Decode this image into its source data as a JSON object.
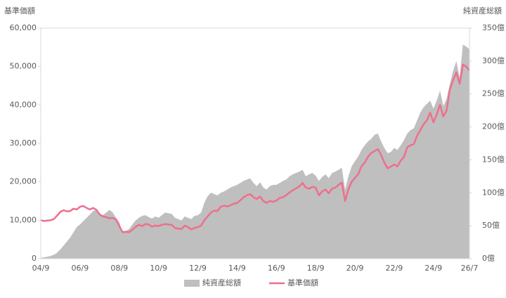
{
  "chart_data": {
    "type": "area-line",
    "y_label": "基準価額",
    "y2_label": "純資産総額",
    "categories": [
      "04/9",
      null,
      null,
      null,
      null,
      null,
      null,
      null,
      null,
      null,
      null,
      null,
      "06/9",
      null,
      null,
      null,
      null,
      null,
      null,
      null,
      null,
      null,
      null,
      null,
      "08/9",
      null,
      null,
      null,
      null,
      null,
      null,
      null,
      null,
      null,
      null,
      null,
      "10/9",
      null,
      null,
      null,
      null,
      null,
      null,
      null,
      null,
      null,
      null,
      null,
      "12/9",
      null,
      null,
      null,
      null,
      null,
      null,
      null,
      null,
      null,
      null,
      null,
      "14/9",
      null,
      null,
      null,
      null,
      null,
      null,
      null,
      null,
      null,
      null,
      null,
      "16/9",
      null,
      null,
      null,
      null,
      null,
      null,
      null,
      null,
      null,
      null,
      null,
      "18/9",
      null,
      null,
      null,
      null,
      null,
      null,
      null,
      null,
      null,
      null,
      null,
      "20/9",
      null,
      null,
      null,
      null,
      null,
      null,
      null,
      null,
      null,
      null,
      null,
      "22/9",
      null,
      null,
      null,
      null,
      null,
      null,
      null,
      null,
      null,
      null,
      null,
      "24/9",
      null,
      null,
      null,
      null,
      null,
      null,
      null,
      null,
      null,
      null,
      "26/7"
    ],
    "series": [
      {
        "name": "純資産総額",
        "kind": "area",
        "axis": "y2",
        "color": "#bfbfbf",
        "values": [
          1,
          2,
          3,
          4,
          6,
          9,
          14,
          20,
          26,
          32,
          40,
          48,
          52,
          57,
          62,
          67,
          72,
          75,
          68,
          66,
          70,
          74,
          70,
          62,
          55,
          40,
          42,
          45,
          52,
          58,
          62,
          65,
          66,
          63,
          61,
          64,
          62,
          66,
          70,
          69,
          68,
          62,
          60,
          58,
          64,
          62,
          60,
          65,
          66,
          70,
          85,
          95,
          100,
          98,
          96,
          100,
          102,
          105,
          108,
          110,
          112,
          115,
          118,
          120,
          122,
          115,
          110,
          116,
          108,
          105,
          110,
          112,
          112,
          115,
          118,
          120,
          125,
          128,
          130,
          132,
          135,
          125,
          128,
          130,
          126,
          118,
          124,
          128,
          122,
          130,
          132,
          135,
          138,
          105,
          125,
          140,
          148,
          155,
          165,
          172,
          178,
          182,
          188,
          190,
          178,
          168,
          160,
          162,
          168,
          165,
          172,
          180,
          190,
          195,
          198,
          210,
          222,
          230,
          235,
          240,
          228,
          240,
          255,
          232,
          242,
          265,
          285,
          300,
          275,
          325,
          322,
          318
        ]
      },
      {
        "name": "基準価額",
        "kind": "line",
        "axis": "y",
        "color": "#ee6f8d",
        "values": [
          10000,
          9800,
          9900,
          10000,
          10300,
          11200,
          12200,
          12600,
          12300,
          12400,
          13000,
          12800,
          13500,
          13700,
          13200,
          12800,
          13200,
          12700,
          11500,
          11000,
          10800,
          10500,
          10600,
          10200,
          8500,
          6900,
          7000,
          6900,
          7500,
          8300,
          8800,
          8500,
          9000,
          8900,
          8300,
          8600,
          8500,
          8800,
          9000,
          8900,
          8800,
          8000,
          7800,
          7700,
          8600,
          8200,
          7600,
          8000,
          8200,
          8600,
          10000,
          11000,
          12000,
          12500,
          12400,
          13500,
          13800,
          13600,
          13900,
          14300,
          14500,
          15200,
          16000,
          16500,
          16800,
          16000,
          15500,
          16200,
          15000,
          14500,
          15000,
          14800,
          15100,
          15800,
          16000,
          16500,
          17200,
          17800,
          18300,
          18800,
          19700,
          18500,
          18200,
          18700,
          18500,
          16500,
          17500,
          18000,
          17000,
          18200,
          18500,
          19200,
          19800,
          15000,
          18000,
          20000,
          21000,
          22000,
          24000,
          25000,
          26500,
          27500,
          28000,
          28500,
          27000,
          25000,
          23500,
          24000,
          24500,
          24000,
          25500,
          26500,
          29000,
          29500,
          29800,
          32000,
          33500,
          35000,
          36000,
          38000,
          35500,
          37500,
          40000,
          37000,
          38500,
          44000,
          46500,
          48500,
          45500,
          50500,
          50000,
          49000
        ]
      }
    ],
    "ylim": [
      0,
      60000
    ],
    "yticks": [
      0,
      {
        "value": 10000,
        "label": "10,000"
      },
      {
        "value": 20000,
        "label": "20,000"
      },
      {
        "value": 30000,
        "label": "30,000"
      },
      {
        "value": 40000,
        "label": "40,000"
      },
      {
        "value": 50000,
        "label": "50,000"
      },
      {
        "value": 60000,
        "label": "60,000"
      }
    ],
    "y2lim": [
      0,
      350
    ],
    "y2ticks": [
      {
        "value": 0,
        "label": "0億"
      },
      {
        "value": 50,
        "label": "50億"
      },
      {
        "value": 100,
        "label": "100億"
      },
      {
        "value": 150,
        "label": "150億"
      },
      {
        "value": 200,
        "label": "200億"
      },
      {
        "value": 250,
        "label": "250億"
      },
      {
        "value": 300,
        "label": "300億"
      },
      {
        "value": 350,
        "label": "350億"
      }
    ],
    "grid": false,
    "legend": "bottom"
  }
}
